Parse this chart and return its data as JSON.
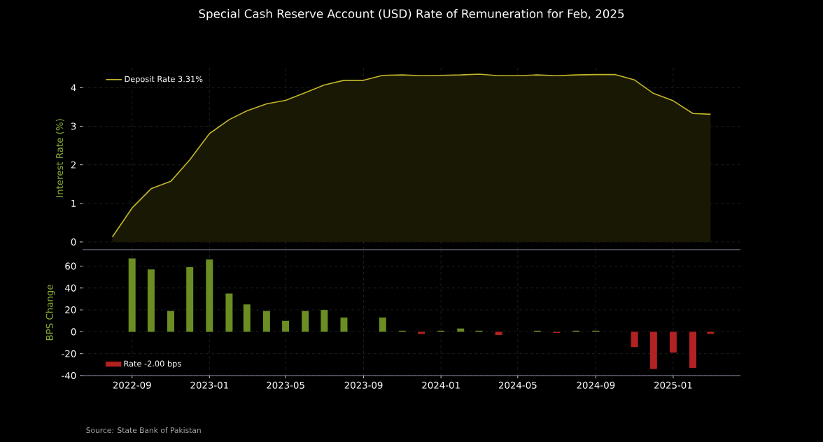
{
  "chart_data": [
    {
      "type": "area",
      "title": "Special Cash Reserve Account (USD) Rate of Remuneration for Feb, 2025",
      "ylabel": "Interest Rate (%)",
      "x": [
        "2022-08",
        "2022-09",
        "2022-10",
        "2022-11",
        "2022-12",
        "2023-01",
        "2023-02",
        "2023-03",
        "2023-04",
        "2023-05",
        "2023-06",
        "2023-07",
        "2023-08",
        "2023-09",
        "2023-10",
        "2023-11",
        "2023-12",
        "2024-01",
        "2024-02",
        "2024-03",
        "2024-04",
        "2024-05",
        "2024-06",
        "2024-07",
        "2024-08",
        "2024-09",
        "2024-10",
        "2024-11",
        "2024-12",
        "2025-01",
        "2025-02",
        "2025-03"
      ],
      "series": [
        {
          "name": "Deposit Rate 3.31%",
          "color": "#c2b72a",
          "values": [
            0.13,
            0.88,
            1.38,
            1.57,
            2.13,
            2.81,
            3.17,
            3.4,
            3.58,
            3.67,
            3.87,
            4.07,
            4.19,
            4.19,
            4.32,
            4.33,
            4.31,
            4.32,
            4.33,
            4.35,
            4.31,
            4.31,
            4.33,
            4.31,
            4.33,
            4.34,
            4.34,
            4.2,
            3.85,
            3.66,
            3.33,
            3.31
          ]
        }
      ],
      "xlim": [
        "2022-06-15",
        "2025-04-17"
      ],
      "ylim": [
        -0.2,
        4.55
      ],
      "xticks": [
        "2022-09",
        "2023-01",
        "2023-05",
        "2023-09",
        "2024-01",
        "2024-05",
        "2024-09",
        "2025-01"
      ],
      "yticks": [
        0,
        1,
        2,
        3,
        4
      ],
      "grid": true,
      "legend": "top left",
      "tick_labels": "y"
    },
    {
      "type": "bar",
      "ylabel": "BPS Change",
      "x": [
        "2022-09",
        "2022-10",
        "2022-11",
        "2022-12",
        "2023-01",
        "2023-02",
        "2023-03",
        "2023-04",
        "2023-05",
        "2023-06",
        "2023-07",
        "2023-08",
        "2023-09",
        "2023-10",
        "2023-11",
        "2023-12",
        "2024-01",
        "2024-02",
        "2024-03",
        "2024-04",
        "2024-05",
        "2024-06",
        "2024-07",
        "2024-08",
        "2024-09",
        "2024-10",
        "2024-11",
        "2024-12",
        "2025-01",
        "2025-02",
        "2025-03"
      ],
      "series": [
        {
          "name": "Rate -2.00 bps",
          "color": "#b22222",
          "values": [
            67,
            57,
            19,
            59,
            66,
            35,
            25,
            19,
            10,
            19,
            20,
            13,
            0,
            13,
            1,
            -2,
            1,
            3,
            1,
            -3,
            0,
            1,
            -1,
            1,
            1,
            0,
            -14,
            -34,
            -19,
            -33,
            -2
          ],
          "colors": [
            "#6b8e23",
            "#6b8e23",
            "#6b8e23",
            "#6b8e23",
            "#6b8e23",
            "#6b8e23",
            "#6b8e23",
            "#6b8e23",
            "#6b8e23",
            "#6b8e23",
            "#6b8e23",
            "#6b8e23",
            "#6b8e23",
            "#6b8e23",
            "#6b8e23",
            "#b22222",
            "#6b8e23",
            "#6b8e23",
            "#6b8e23",
            "#b22222",
            "#6b8e23",
            "#6b8e23",
            "#b22222",
            "#6b8e23",
            "#6b8e23",
            "#6b8e23",
            "#b22222",
            "#b22222",
            "#b22222",
            "#b22222",
            "#b22222"
          ]
        }
      ],
      "xlim": [
        "2022-06-15",
        "2025-04-17"
      ],
      "ylim": [
        -40,
        75
      ],
      "xticks": [
        "2022-09",
        "2023-01",
        "2023-05",
        "2023-09",
        "2024-01",
        "2024-05",
        "2024-09",
        "2025-01"
      ],
      "yticks": [
        -40,
        -20,
        0,
        20,
        40,
        60
      ],
      "grid": true,
      "legend": "bottom left",
      "annotations": [
        "Source: State Bank of Pakistan"
      ]
    }
  ]
}
